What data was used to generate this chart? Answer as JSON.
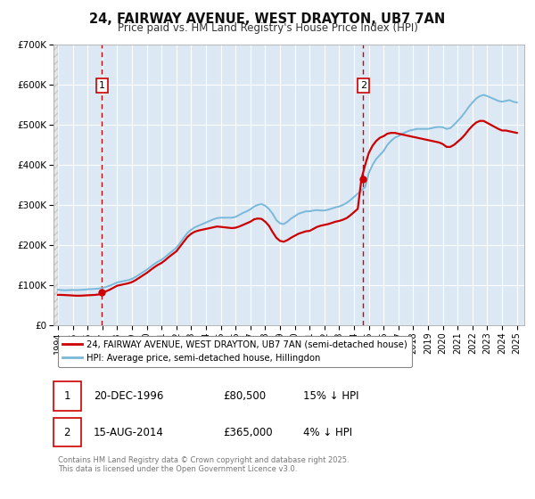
{
  "title": "24, FAIRWAY AVENUE, WEST DRAYTON, UB7 7AN",
  "subtitle": "Price paid vs. HM Land Registry's House Price Index (HPI)",
  "background_color": "#ffffff",
  "plot_bg_color": "#dce9f5",
  "grid_color": "#ffffff",
  "hpi_color": "#7ab8d9",
  "price_color": "#cc0000",
  "marker_color": "#cc0000",
  "vline_color": "#cc0000",
  "ylim": [
    0,
    700000
  ],
  "xlim_start": 1993.7,
  "xlim_end": 2025.5,
  "ytick_labels": [
    "£0",
    "£100K",
    "£200K",
    "£300K",
    "£400K",
    "£500K",
    "£600K",
    "£700K"
  ],
  "ytick_values": [
    0,
    100000,
    200000,
    300000,
    400000,
    500000,
    600000,
    700000
  ],
  "xtick_values": [
    1994,
    1995,
    1996,
    1997,
    1998,
    1999,
    2000,
    2001,
    2002,
    2003,
    2004,
    2005,
    2006,
    2007,
    2008,
    2009,
    2010,
    2011,
    2012,
    2013,
    2014,
    2015,
    2016,
    2017,
    2018,
    2019,
    2020,
    2021,
    2022,
    2023,
    2024,
    2025
  ],
  "sale1_year": 1996.97,
  "sale1_price": 80500,
  "sale1_label": "1",
  "sale2_year": 2014.62,
  "sale2_price": 365000,
  "sale2_label": "2",
  "legend_line1": "24, FAIRWAY AVENUE, WEST DRAYTON, UB7 7AN (semi-detached house)",
  "legend_line2": "HPI: Average price, semi-detached house, Hillingdon",
  "table_row1": [
    "1",
    "20-DEC-1996",
    "£80,500",
    "15% ↓ HPI"
  ],
  "table_row2": [
    "2",
    "15-AUG-2014",
    "£365,000",
    "4% ↓ HPI"
  ],
  "footnote": "Contains HM Land Registry data © Crown copyright and database right 2025.\nThis data is licensed under the Open Government Licence v3.0.",
  "hpi_data": [
    [
      1994.0,
      88000
    ],
    [
      1994.25,
      87000
    ],
    [
      1994.5,
      86500
    ],
    [
      1994.75,
      87000
    ],
    [
      1995.0,
      87500
    ],
    [
      1995.25,
      87000
    ],
    [
      1995.5,
      87500
    ],
    [
      1995.75,
      88000
    ],
    [
      1996.0,
      89000
    ],
    [
      1996.25,
      89500
    ],
    [
      1996.5,
      90000
    ],
    [
      1996.75,
      91000
    ],
    [
      1997.0,
      92000
    ],
    [
      1997.25,
      95000
    ],
    [
      1997.5,
      98000
    ],
    [
      1997.75,
      102000
    ],
    [
      1998.0,
      106000
    ],
    [
      1998.25,
      108000
    ],
    [
      1998.5,
      110000
    ],
    [
      1998.75,
      112000
    ],
    [
      1999.0,
      115000
    ],
    [
      1999.25,
      120000
    ],
    [
      1999.5,
      126000
    ],
    [
      1999.75,
      132000
    ],
    [
      2000.0,
      138000
    ],
    [
      2000.25,
      145000
    ],
    [
      2000.5,
      152000
    ],
    [
      2000.75,
      158000
    ],
    [
      2001.0,
      163000
    ],
    [
      2001.25,
      170000
    ],
    [
      2001.5,
      178000
    ],
    [
      2001.75,
      185000
    ],
    [
      2002.0,
      193000
    ],
    [
      2002.25,
      205000
    ],
    [
      2002.5,
      218000
    ],
    [
      2002.75,
      230000
    ],
    [
      2003.0,
      238000
    ],
    [
      2003.25,
      244000
    ],
    [
      2003.5,
      248000
    ],
    [
      2003.75,
      252000
    ],
    [
      2004.0,
      256000
    ],
    [
      2004.25,
      260000
    ],
    [
      2004.5,
      264000
    ],
    [
      2004.75,
      267000
    ],
    [
      2005.0,
      268000
    ],
    [
      2005.25,
      268000
    ],
    [
      2005.5,
      268000
    ],
    [
      2005.75,
      268000
    ],
    [
      2006.0,
      270000
    ],
    [
      2006.25,
      275000
    ],
    [
      2006.5,
      280000
    ],
    [
      2006.75,
      284000
    ],
    [
      2007.0,
      289000
    ],
    [
      2007.25,
      296000
    ],
    [
      2007.5,
      300000
    ],
    [
      2007.75,
      302000
    ],
    [
      2008.0,
      298000
    ],
    [
      2008.25,
      290000
    ],
    [
      2008.5,
      278000
    ],
    [
      2008.75,
      262000
    ],
    [
      2009.0,
      254000
    ],
    [
      2009.25,
      252000
    ],
    [
      2009.5,
      258000
    ],
    [
      2009.75,
      266000
    ],
    [
      2010.0,
      272000
    ],
    [
      2010.25,
      278000
    ],
    [
      2010.5,
      281000
    ],
    [
      2010.75,
      284000
    ],
    [
      2011.0,
      284000
    ],
    [
      2011.25,
      286000
    ],
    [
      2011.5,
      287000
    ],
    [
      2011.75,
      286000
    ],
    [
      2012.0,
      286000
    ],
    [
      2012.25,
      288000
    ],
    [
      2012.5,
      291000
    ],
    [
      2012.75,
      294000
    ],
    [
      2013.0,
      296000
    ],
    [
      2013.25,
      300000
    ],
    [
      2013.5,
      305000
    ],
    [
      2013.75,
      312000
    ],
    [
      2014.0,
      320000
    ],
    [
      2014.25,
      328000
    ],
    [
      2014.5,
      336000
    ],
    [
      2014.75,
      345000
    ],
    [
      2015.0,
      380000
    ],
    [
      2015.25,
      400000
    ],
    [
      2015.5,
      415000
    ],
    [
      2015.75,
      425000
    ],
    [
      2016.0,
      435000
    ],
    [
      2016.25,
      450000
    ],
    [
      2016.5,
      460000
    ],
    [
      2016.75,
      468000
    ],
    [
      2017.0,
      472000
    ],
    [
      2017.25,
      478000
    ],
    [
      2017.5,
      482000
    ],
    [
      2017.75,
      486000
    ],
    [
      2018.0,
      488000
    ],
    [
      2018.25,
      490000
    ],
    [
      2018.5,
      490000
    ],
    [
      2018.75,
      490000
    ],
    [
      2019.0,
      490000
    ],
    [
      2019.25,
      492000
    ],
    [
      2019.5,
      494000
    ],
    [
      2019.75,
      495000
    ],
    [
      2020.0,
      494000
    ],
    [
      2020.25,
      490000
    ],
    [
      2020.5,
      492000
    ],
    [
      2020.75,
      500000
    ],
    [
      2021.0,
      510000
    ],
    [
      2021.25,
      520000
    ],
    [
      2021.5,
      532000
    ],
    [
      2021.75,
      545000
    ],
    [
      2022.0,
      556000
    ],
    [
      2022.25,
      566000
    ],
    [
      2022.5,
      572000
    ],
    [
      2022.75,
      575000
    ],
    [
      2023.0,
      572000
    ],
    [
      2023.25,
      568000
    ],
    [
      2023.5,
      564000
    ],
    [
      2023.75,
      560000
    ],
    [
      2024.0,
      558000
    ],
    [
      2024.25,
      560000
    ],
    [
      2024.5,
      562000
    ],
    [
      2024.75,
      558000
    ],
    [
      2025.0,
      556000
    ]
  ],
  "price_data": [
    [
      1994.0,
      75000
    ],
    [
      1994.25,
      75000
    ],
    [
      1994.5,
      74500
    ],
    [
      1994.75,
      74000
    ],
    [
      1995.0,
      73500
    ],
    [
      1995.25,
      73000
    ],
    [
      1995.5,
      73000
    ],
    [
      1995.75,
      73500
    ],
    [
      1996.0,
      74000
    ],
    [
      1996.25,
      74500
    ],
    [
      1996.5,
      75000
    ],
    [
      1996.75,
      76000
    ],
    [
      1997.0,
      80500
    ],
    [
      1997.25,
      84000
    ],
    [
      1997.5,
      88000
    ],
    [
      1997.75,
      93000
    ],
    [
      1998.0,
      98000
    ],
    [
      1998.25,
      100000
    ],
    [
      1998.5,
      102000
    ],
    [
      1998.75,
      104000
    ],
    [
      1999.0,
      107000
    ],
    [
      1999.25,
      112000
    ],
    [
      1999.5,
      118000
    ],
    [
      1999.75,
      124000
    ],
    [
      2000.0,
      130000
    ],
    [
      2000.25,
      137000
    ],
    [
      2000.5,
      144000
    ],
    [
      2000.75,
      150000
    ],
    [
      2001.0,
      155000
    ],
    [
      2001.25,
      162000
    ],
    [
      2001.5,
      170000
    ],
    [
      2001.75,
      177000
    ],
    [
      2002.0,
      184000
    ],
    [
      2002.25,
      196000
    ],
    [
      2002.5,
      208000
    ],
    [
      2002.75,
      220000
    ],
    [
      2003.0,
      228000
    ],
    [
      2003.25,
      233000
    ],
    [
      2003.5,
      236000
    ],
    [
      2003.75,
      238000
    ],
    [
      2004.0,
      240000
    ],
    [
      2004.25,
      242000
    ],
    [
      2004.5,
      244000
    ],
    [
      2004.75,
      246000
    ],
    [
      2005.0,
      245000
    ],
    [
      2005.25,
      244000
    ],
    [
      2005.5,
      243000
    ],
    [
      2005.75,
      242000
    ],
    [
      2006.0,
      243000
    ],
    [
      2006.25,
      246000
    ],
    [
      2006.5,
      250000
    ],
    [
      2006.75,
      254000
    ],
    [
      2007.0,
      258000
    ],
    [
      2007.25,
      264000
    ],
    [
      2007.5,
      266000
    ],
    [
      2007.75,
      265000
    ],
    [
      2008.0,
      258000
    ],
    [
      2008.25,
      248000
    ],
    [
      2008.5,
      232000
    ],
    [
      2008.75,
      218000
    ],
    [
      2009.0,
      210000
    ],
    [
      2009.25,
      208000
    ],
    [
      2009.5,
      212000
    ],
    [
      2009.75,
      218000
    ],
    [
      2010.0,
      223000
    ],
    [
      2010.25,
      228000
    ],
    [
      2010.5,
      231000
    ],
    [
      2010.75,
      234000
    ],
    [
      2011.0,
      235000
    ],
    [
      2011.25,
      240000
    ],
    [
      2011.5,
      245000
    ],
    [
      2011.75,
      248000
    ],
    [
      2012.0,
      250000
    ],
    [
      2012.25,
      252000
    ],
    [
      2012.5,
      255000
    ],
    [
      2012.75,
      258000
    ],
    [
      2013.0,
      260000
    ],
    [
      2013.25,
      263000
    ],
    [
      2013.5,
      267000
    ],
    [
      2013.75,
      274000
    ],
    [
      2014.0,
      282000
    ],
    [
      2014.25,
      290000
    ],
    [
      2014.5,
      365000
    ],
    [
      2014.75,
      400000
    ],
    [
      2015.0,
      430000
    ],
    [
      2015.25,
      448000
    ],
    [
      2015.5,
      460000
    ],
    [
      2015.75,
      468000
    ],
    [
      2016.0,
      472000
    ],
    [
      2016.25,
      478000
    ],
    [
      2016.5,
      480000
    ],
    [
      2016.75,
      480000
    ],
    [
      2017.0,
      478000
    ],
    [
      2017.25,
      476000
    ],
    [
      2017.5,
      474000
    ],
    [
      2017.75,
      472000
    ],
    [
      2018.0,
      470000
    ],
    [
      2018.25,
      468000
    ],
    [
      2018.5,
      466000
    ],
    [
      2018.75,
      464000
    ],
    [
      2019.0,
      462000
    ],
    [
      2019.25,
      460000
    ],
    [
      2019.5,
      458000
    ],
    [
      2019.75,
      456000
    ],
    [
      2020.0,
      452000
    ],
    [
      2020.25,
      445000
    ],
    [
      2020.5,
      445000
    ],
    [
      2020.75,
      450000
    ],
    [
      2021.0,
      458000
    ],
    [
      2021.25,
      466000
    ],
    [
      2021.5,
      476000
    ],
    [
      2021.75,
      488000
    ],
    [
      2022.0,
      498000
    ],
    [
      2022.25,
      506000
    ],
    [
      2022.5,
      510000
    ],
    [
      2022.75,
      510000
    ],
    [
      2023.0,
      505000
    ],
    [
      2023.25,
      500000
    ],
    [
      2023.5,
      495000
    ],
    [
      2023.75,
      490000
    ],
    [
      2024.0,
      486000
    ],
    [
      2024.25,
      486000
    ],
    [
      2024.5,
      484000
    ],
    [
      2024.75,
      482000
    ],
    [
      2025.0,
      480000
    ]
  ]
}
